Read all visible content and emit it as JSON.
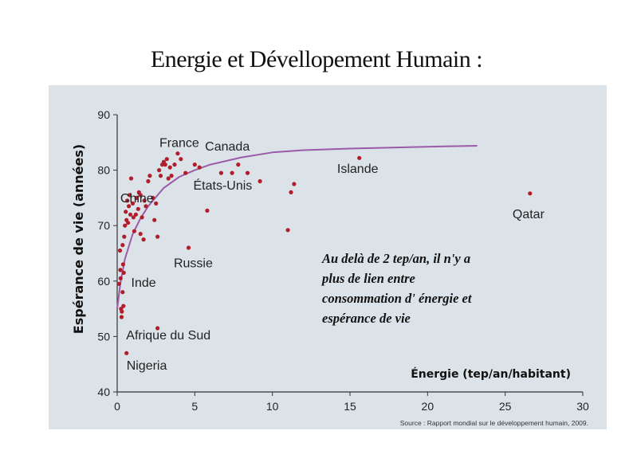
{
  "slide": {
    "title": "Energie et Dévellopement Humain :"
  },
  "chart_data": {
    "type": "scatter",
    "title": "",
    "xlabel": "Énergie (tep/an/habitant)",
    "ylabel": "Espérance de vie (années)",
    "xlim": [
      0,
      30
    ],
    "ylim": [
      40,
      90
    ],
    "x_ticks": [
      0,
      5,
      10,
      15,
      20,
      25,
      30
    ],
    "y_ticks": [
      40,
      50,
      60,
      70,
      80,
      90
    ],
    "grid": false,
    "colors": {
      "points": "#b11e2b",
      "trend": "#9b5ba8",
      "panel": "#dce3e8"
    },
    "series": [
      {
        "points": [
          [
            0.12,
            59.5
          ],
          [
            0.2,
            62.0
          ],
          [
            0.18,
            65.5
          ],
          [
            0.25,
            55.0
          ],
          [
            0.28,
            53.5
          ],
          [
            0.3,
            54.5
          ],
          [
            0.22,
            60.5
          ],
          [
            0.35,
            66.5
          ],
          [
            0.38,
            63.0
          ],
          [
            0.42,
            61.5
          ],
          [
            0.45,
            68.0
          ],
          [
            0.35,
            58.0
          ],
          [
            0.5,
            70.0
          ],
          [
            0.55,
            72.5
          ],
          [
            0.6,
            71.0
          ],
          [
            0.65,
            74.5
          ],
          [
            0.7,
            70.5
          ],
          [
            0.75,
            73.5
          ],
          [
            0.8,
            75.5
          ],
          [
            0.85,
            72.0
          ],
          [
            0.9,
            78.5
          ],
          [
            1.0,
            74.0
          ],
          [
            1.05,
            71.5
          ],
          [
            1.1,
            69.0
          ],
          [
            1.2,
            72.0
          ],
          [
            1.25,
            75.0
          ],
          [
            1.35,
            73.0
          ],
          [
            1.4,
            76.0
          ],
          [
            1.5,
            68.5
          ],
          [
            1.6,
            71.5
          ],
          [
            1.7,
            67.5
          ],
          [
            1.75,
            74.5
          ],
          [
            1.85,
            73.5
          ],
          [
            2.0,
            78.0
          ],
          [
            2.1,
            79.0
          ],
          [
            2.3,
            75.0
          ],
          [
            2.4,
            71.0
          ],
          [
            2.5,
            74.0
          ],
          [
            2.6,
            68.0
          ],
          [
            2.7,
            80.0
          ],
          [
            2.8,
            79.0
          ],
          [
            2.9,
            81.0
          ],
          [
            3.0,
            81.5
          ],
          [
            3.1,
            81.0
          ],
          [
            3.2,
            82.0
          ],
          [
            3.3,
            78.5
          ],
          [
            3.4,
            80.5
          ],
          [
            3.5,
            79.0
          ],
          [
            3.7,
            81.0
          ],
          [
            3.9,
            83.0
          ],
          [
            4.1,
            82.0
          ],
          [
            4.4,
            79.5
          ],
          [
            5.0,
            81.0
          ],
          [
            5.3,
            80.5
          ],
          [
            6.7,
            79.5
          ],
          [
            7.4,
            79.5
          ],
          [
            7.8,
            81.0
          ],
          [
            8.4,
            79.5
          ],
          [
            9.2,
            78.0
          ],
          [
            11.2,
            76.0
          ],
          [
            11.4,
            77.5
          ],
          [
            4.6,
            66.0
          ],
          [
            5.8,
            72.7
          ],
          [
            11.0,
            69.2
          ],
          [
            2.6,
            51.5
          ],
          [
            0.6,
            47.0
          ],
          [
            0.4,
            55.5
          ],
          [
            1.5,
            75.5
          ],
          [
            15.6,
            82.2
          ],
          [
            26.6,
            75.8
          ]
        ]
      }
    ],
    "trend_curve": {
      "x": [
        0,
        0.2,
        0.5,
        1,
        1.5,
        2,
        3,
        4,
        5,
        6,
        8,
        10,
        12,
        15,
        18,
        21,
        23.2
      ],
      "y": [
        55,
        59.5,
        64,
        68.5,
        71.3,
        73.5,
        76.8,
        78.8,
        80.0,
        81.0,
        82.3,
        83.2,
        83.6,
        83.9,
        84.1,
        84.3,
        84.4
      ]
    },
    "labels": [
      {
        "text": "France",
        "x": 4.0,
        "y": 84.2
      },
      {
        "text": "Canada",
        "x": 7.1,
        "y": 83.5
      },
      {
        "text": "États-Unis",
        "x": 6.8,
        "y": 76.5
      },
      {
        "text": "Islande",
        "x": 15.5,
        "y": 79.5
      },
      {
        "text": "Qatar",
        "x": 26.5,
        "y": 71.3
      },
      {
        "text": "Chine",
        "x": 0.2,
        "y": 74.2
      },
      {
        "text": "Russie",
        "x": 4.9,
        "y": 62.5
      },
      {
        "text": "Inde",
        "x": 0.9,
        "y": 59.0
      },
      {
        "text": "Afrique du Sud",
        "x": 3.3,
        "y": 49.5
      },
      {
        "text": "Nigeria",
        "x": 0.6,
        "y": 44.0
      }
    ],
    "annotation": [
      "Au delà de 2 tep/an, il n'y a",
      "plus de lien entre",
      "consommation d' énergie et",
      "espérance de vie"
    ],
    "source": "Source : Rapport mondial sur le développement humain, 2009."
  }
}
